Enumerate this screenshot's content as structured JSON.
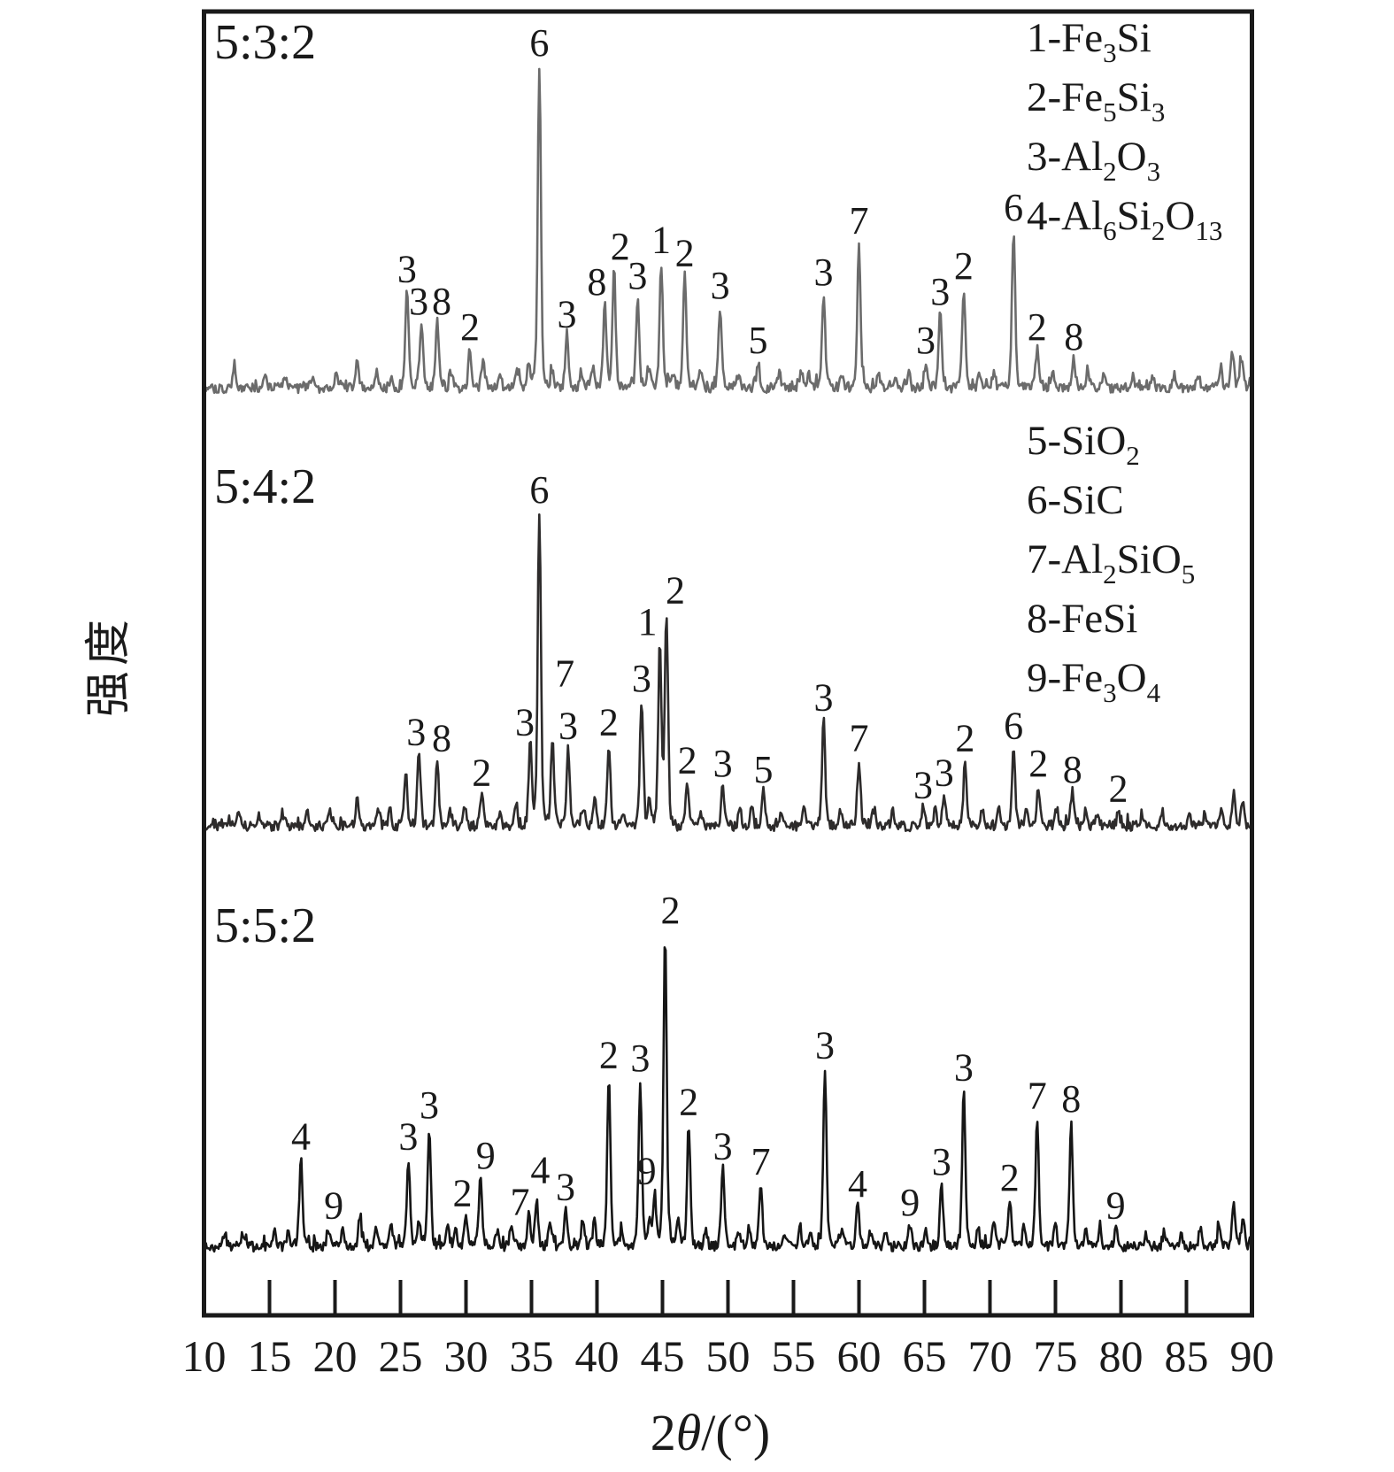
{
  "chart_data": {
    "type": "line",
    "title": "",
    "xlabel": "2θ/(°)",
    "ylabel": "强度",
    "xlim": [
      10,
      90
    ],
    "x_ticks": [
      10,
      15,
      20,
      25,
      30,
      35,
      40,
      45,
      50,
      55,
      60,
      65,
      70,
      75,
      80,
      85,
      90
    ],
    "grid": false,
    "background": "#ffffff",
    "axis_color": "#1a1a1a",
    "legend_position": "top-right",
    "legend_blocks": [
      {
        "entries": [
          {
            "num": "1",
            "formula": "Fe_3Si"
          },
          {
            "num": "2",
            "formula": "Fe_5Si_3"
          },
          {
            "num": "3",
            "formula": "Al_2O_3"
          },
          {
            "num": "4",
            "formula": "Al_6Si_2O_13"
          }
        ]
      },
      {
        "entries": [
          {
            "num": "5",
            "formula": "SiO_2"
          },
          {
            "num": "6",
            "formula": "SiC"
          },
          {
            "num": "7",
            "formula": "Al_2SiO_5"
          },
          {
            "num": "8",
            "formula": "FeSi"
          },
          {
            "num": "9",
            "formula": "Fe_3O_4"
          }
        ]
      }
    ],
    "panels": [
      {
        "ratio_label": "5:3:2",
        "color": "#6b6b6b",
        "peaks": [
          {
            "t": 25.5,
            "h": 0.3,
            "label": "3"
          },
          {
            "t": 26.6,
            "h": 0.2,
            "label": "3",
            "dx": -3
          },
          {
            "t": 27.8,
            "h": 0.2,
            "label": "8",
            "dx": 5
          },
          {
            "t": 30.3,
            "h": 0.12,
            "label": "2"
          },
          {
            "t": 35.6,
            "h": 1.0,
            "label": "6"
          },
          {
            "t": 37.7,
            "h": 0.16,
            "label": "3"
          },
          {
            "t": 40.6,
            "h": 0.26,
            "label": "8",
            "dx": -9
          },
          {
            "t": 41.3,
            "h": 0.37,
            "label": "2",
            "dx": 7
          },
          {
            "t": 43.1,
            "h": 0.28,
            "label": "3"
          },
          {
            "t": 44.9,
            "h": 0.39,
            "label": "1"
          },
          {
            "t": 46.7,
            "h": 0.35,
            "label": "2"
          },
          {
            "t": 49.4,
            "h": 0.25,
            "label": "3"
          },
          {
            "t": 52.3,
            "h": 0.08,
            "label": "5"
          },
          {
            "t": 57.3,
            "h": 0.29,
            "label": "3"
          },
          {
            "t": 60.0,
            "h": 0.45,
            "label": "7"
          },
          {
            "t": 65.1,
            "h": 0.08,
            "label": "3"
          },
          {
            "t": 66.2,
            "h": 0.23,
            "label": "3"
          },
          {
            "t": 68.0,
            "h": 0.31,
            "label": "2"
          },
          {
            "t": 71.8,
            "h": 0.49,
            "label": "6"
          },
          {
            "t": 73.6,
            "h": 0.12,
            "label": "2"
          },
          {
            "t": 76.4,
            "h": 0.09,
            "label": "8"
          }
        ],
        "minor_peaks": [
          [
            12.3,
            0.06
          ],
          [
            14.7,
            0.04
          ],
          [
            16.2,
            0.04
          ],
          [
            18.3,
            0.04
          ],
          [
            20.1,
            0.05
          ],
          [
            21.7,
            0.08
          ],
          [
            23.2,
            0.05
          ],
          [
            24.3,
            0.04
          ],
          [
            28.9,
            0.05
          ],
          [
            31.3,
            0.08
          ],
          [
            32.6,
            0.04
          ],
          [
            33.9,
            0.06
          ],
          [
            34.8,
            0.08
          ],
          [
            36.6,
            0.06
          ],
          [
            38.8,
            0.05
          ],
          [
            39.7,
            0.06
          ],
          [
            44.0,
            0.06
          ],
          [
            45.8,
            0.05
          ],
          [
            47.9,
            0.05
          ],
          [
            50.8,
            0.04
          ],
          [
            53.9,
            0.05
          ],
          [
            55.6,
            0.05
          ],
          [
            56.2,
            0.04
          ],
          [
            58.7,
            0.04
          ],
          [
            61.5,
            0.05
          ],
          [
            62.8,
            0.04
          ],
          [
            63.8,
            0.05
          ],
          [
            69.2,
            0.04
          ],
          [
            70.3,
            0.05
          ],
          [
            74.8,
            0.04
          ],
          [
            77.5,
            0.05
          ],
          [
            78.7,
            0.05
          ],
          [
            80.9,
            0.04
          ],
          [
            82.4,
            0.04
          ],
          [
            84.1,
            0.04
          ],
          [
            85.9,
            0.04
          ],
          [
            87.6,
            0.07
          ],
          [
            88.5,
            0.12
          ],
          [
            89.2,
            0.09
          ]
        ]
      },
      {
        "ratio_label": "5:4:2",
        "color": "#2d2b2b",
        "peaks": [
          {
            "t": 26.4,
            "h": 0.23,
            "label": "3",
            "dx": -3
          },
          {
            "t": 27.8,
            "h": 0.21,
            "label": "8",
            "dx": 5
          },
          {
            "t": 31.2,
            "h": 0.1,
            "label": "2"
          },
          {
            "t": 34.9,
            "h": 0.26,
            "label": "3",
            "dx": -6
          },
          {
            "t": 35.6,
            "h": 1.0,
            "label": "6"
          },
          {
            "t": 36.6,
            "h": 0.28,
            "label": "7",
            "dx": 14,
            "dy": -48
          },
          {
            "t": 37.8,
            "h": 0.25,
            "label": "3"
          },
          {
            "t": 40.9,
            "h": 0.26,
            "label": "2"
          },
          {
            "t": 43.4,
            "h": 0.4,
            "label": "3"
          },
          {
            "t": 44.8,
            "h": 0.58,
            "label": "1",
            "dx": -14
          },
          {
            "t": 45.3,
            "h": 0.68,
            "label": "2",
            "dx": 10
          },
          {
            "t": 46.9,
            "h": 0.14,
            "label": "2"
          },
          {
            "t": 49.6,
            "h": 0.13,
            "label": "3"
          },
          {
            "t": 52.7,
            "h": 0.11,
            "label": "5"
          },
          {
            "t": 57.3,
            "h": 0.34,
            "label": "3"
          },
          {
            "t": 60.0,
            "h": 0.21,
            "label": "7"
          },
          {
            "t": 64.9,
            "h": 0.06,
            "label": "3"
          },
          {
            "t": 66.5,
            "h": 0.1,
            "label": "3"
          },
          {
            "t": 68.1,
            "h": 0.21,
            "label": "2"
          },
          {
            "t": 71.8,
            "h": 0.25,
            "label": "6"
          },
          {
            "t": 73.7,
            "h": 0.13,
            "label": "2"
          },
          {
            "t": 76.3,
            "h": 0.11,
            "label": "8"
          },
          {
            "t": 79.8,
            "h": 0.05,
            "label": "2"
          }
        ],
        "minor_peaks": [
          [
            12.6,
            0.04
          ],
          [
            14.2,
            0.04
          ],
          [
            16.1,
            0.04
          ],
          [
            17.9,
            0.04
          ],
          [
            19.6,
            0.05
          ],
          [
            21.7,
            0.09
          ],
          [
            23.3,
            0.06
          ],
          [
            24.2,
            0.05
          ],
          [
            25.4,
            0.18
          ],
          [
            28.8,
            0.05
          ],
          [
            29.9,
            0.06
          ],
          [
            32.6,
            0.04
          ],
          [
            33.8,
            0.07
          ],
          [
            38.9,
            0.06
          ],
          [
            39.8,
            0.08
          ],
          [
            42.0,
            0.05
          ],
          [
            44.0,
            0.08
          ],
          [
            47.9,
            0.05
          ],
          [
            50.9,
            0.05
          ],
          [
            51.8,
            0.06
          ],
          [
            54.1,
            0.04
          ],
          [
            55.8,
            0.05
          ],
          [
            58.6,
            0.05
          ],
          [
            61.2,
            0.05
          ],
          [
            62.6,
            0.04
          ],
          [
            65.8,
            0.05
          ],
          [
            69.4,
            0.05
          ],
          [
            70.7,
            0.06
          ],
          [
            72.8,
            0.05
          ],
          [
            75.1,
            0.06
          ],
          [
            77.3,
            0.05
          ],
          [
            78.2,
            0.04
          ],
          [
            81.6,
            0.04
          ],
          [
            83.1,
            0.04
          ],
          [
            85.2,
            0.04
          ],
          [
            86.4,
            0.04
          ],
          [
            87.7,
            0.06
          ],
          [
            88.6,
            0.11
          ],
          [
            89.3,
            0.08
          ]
        ]
      },
      {
        "ratio_label": "5:5:2",
        "color": "#161616",
        "peaks": [
          {
            "t": 17.4,
            "h": 0.28,
            "label": "4"
          },
          {
            "t": 19.5,
            "h": 0.06,
            "label": "9",
            "dx": 6
          },
          {
            "t": 25.6,
            "h": 0.28,
            "label": "3"
          },
          {
            "t": 27.2,
            "h": 0.38,
            "label": "3"
          },
          {
            "t": 30.0,
            "h": 0.1,
            "label": "2",
            "dx": -4
          },
          {
            "t": 31.1,
            "h": 0.22,
            "label": "9",
            "dx": 6
          },
          {
            "t": 34.8,
            "h": 0.1,
            "label": "7",
            "dx": -10,
            "dy": 10
          },
          {
            "t": 35.4,
            "h": 0.14,
            "label": "4",
            "dx": 4,
            "dy": -12
          },
          {
            "t": 37.6,
            "h": 0.12,
            "label": "3"
          },
          {
            "t": 40.9,
            "h": 0.54,
            "label": "2"
          },
          {
            "t": 43.3,
            "h": 0.53,
            "label": "3"
          },
          {
            "t": 44.4,
            "h": 0.17,
            "label": "9",
            "dx": -9
          },
          {
            "t": 45.2,
            "h": 1.0,
            "label": "2",
            "dx": 6
          },
          {
            "t": 47.0,
            "h": 0.39,
            "label": "2"
          },
          {
            "t": 49.6,
            "h": 0.25,
            "label": "3"
          },
          {
            "t": 52.5,
            "h": 0.2,
            "label": "7"
          },
          {
            "t": 57.4,
            "h": 0.57,
            "label": "3"
          },
          {
            "t": 59.9,
            "h": 0.13,
            "label": "4"
          },
          {
            "t": 63.9,
            "h": 0.07,
            "label": "9"
          },
          {
            "t": 66.3,
            "h": 0.2,
            "label": "3"
          },
          {
            "t": 68.0,
            "h": 0.5,
            "label": "3"
          },
          {
            "t": 71.5,
            "h": 0.15,
            "label": "2"
          },
          {
            "t": 73.6,
            "h": 0.41,
            "label": "7"
          },
          {
            "t": 76.2,
            "h": 0.4,
            "label": "8"
          },
          {
            "t": 79.6,
            "h": 0.06,
            "label": "9"
          }
        ],
        "minor_peaks": [
          [
            11.6,
            0.04
          ],
          [
            13.1,
            0.04
          ],
          [
            15.4,
            0.05
          ],
          [
            16.4,
            0.04
          ],
          [
            20.6,
            0.05
          ],
          [
            21.9,
            0.09
          ],
          [
            23.1,
            0.06
          ],
          [
            24.3,
            0.07
          ],
          [
            26.4,
            0.08
          ],
          [
            28.6,
            0.07
          ],
          [
            29.2,
            0.06
          ],
          [
            32.4,
            0.05
          ],
          [
            33.5,
            0.07
          ],
          [
            36.4,
            0.07
          ],
          [
            38.9,
            0.08
          ],
          [
            39.8,
            0.09
          ],
          [
            41.9,
            0.06
          ],
          [
            44.0,
            0.07
          ],
          [
            46.2,
            0.08
          ],
          [
            48.3,
            0.06
          ],
          [
            50.8,
            0.05
          ],
          [
            51.6,
            0.06
          ],
          [
            54.3,
            0.05
          ],
          [
            55.5,
            0.06
          ],
          [
            56.3,
            0.05
          ],
          [
            58.7,
            0.06
          ],
          [
            60.9,
            0.05
          ],
          [
            62.1,
            0.04
          ],
          [
            65.1,
            0.06
          ],
          [
            69.1,
            0.06
          ],
          [
            70.3,
            0.07
          ],
          [
            72.6,
            0.06
          ],
          [
            75.0,
            0.07
          ],
          [
            77.3,
            0.06
          ],
          [
            78.4,
            0.05
          ],
          [
            81.9,
            0.04
          ],
          [
            83.3,
            0.05
          ],
          [
            84.6,
            0.04
          ],
          [
            86.1,
            0.05
          ],
          [
            87.5,
            0.07
          ],
          [
            88.6,
            0.13
          ],
          [
            89.3,
            0.09
          ]
        ]
      }
    ]
  }
}
